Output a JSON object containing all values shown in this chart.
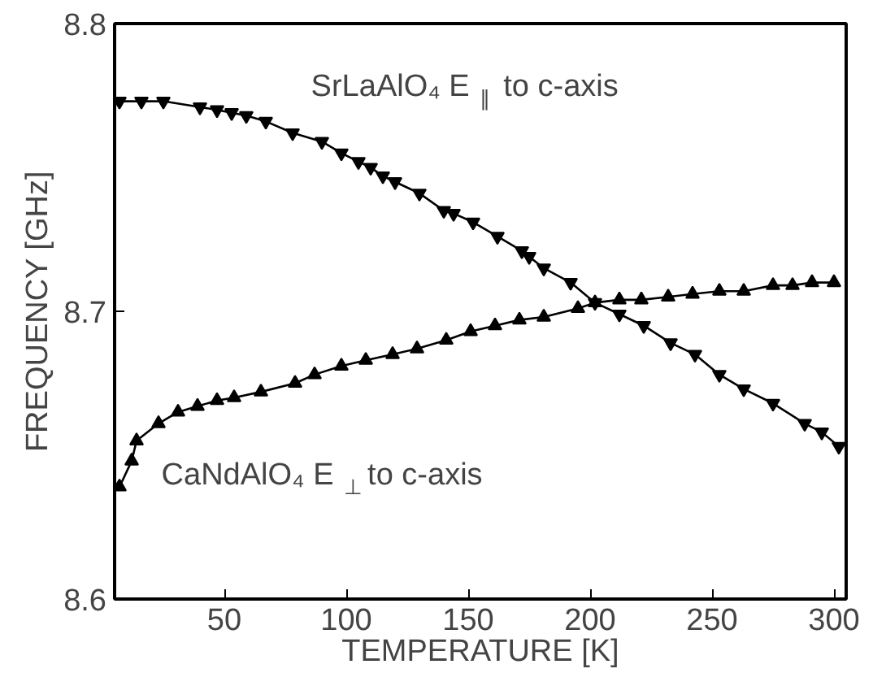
{
  "chart_data": {
    "type": "line",
    "xlabel": "TEMPERATURE [K]",
    "ylabel": "FREQUENCY [GHz]",
    "xlim": [
      5,
      305
    ],
    "ylim": [
      8.6,
      8.8
    ],
    "xticks": [
      50,
      100,
      150,
      200,
      250,
      300
    ],
    "yticks": [
      8.6,
      8.7,
      8.8
    ],
    "grid": false,
    "line_style": "solid",
    "series": [
      {
        "color": "#000000",
        "marker": "triangle_down",
        "x": [
          7,
          16,
          25,
          40,
          47,
          53,
          59,
          67,
          78,
          90,
          98,
          105,
          110,
          115,
          120,
          130,
          140,
          144,
          152,
          162,
          172,
          175,
          181,
          192,
          202,
          212,
          222,
          233,
          243,
          253,
          263,
          275,
          288,
          295,
          302
        ],
        "values": [
          8.773,
          8.773,
          8.773,
          8.771,
          8.77,
          8.769,
          8.768,
          8.766,
          8.762,
          8.759,
          8.755,
          8.752,
          8.75,
          8.747,
          8.745,
          8.741,
          8.735,
          8.734,
          8.731,
          8.726,
          8.721,
          8.719,
          8.715,
          8.71,
          8.703,
          8.699,
          8.695,
          8.689,
          8.685,
          8.678,
          8.673,
          8.668,
          8.661,
          8.658,
          8.653
        ]
      },
      {
        "color": "#000000",
        "marker": "triangle",
        "x": [
          7,
          12,
          14,
          23,
          31,
          39,
          47,
          54,
          65,
          79,
          87,
          98,
          108,
          119,
          129,
          141,
          151,
          161,
          171,
          181,
          195,
          202,
          212,
          221,
          232,
          242,
          253,
          263,
          275,
          283,
          291,
          300
        ],
        "values": [
          8.639,
          8.648,
          8.655,
          8.661,
          8.665,
          8.667,
          8.669,
          8.67,
          8.672,
          8.675,
          8.678,
          8.681,
          8.683,
          8.685,
          8.687,
          8.69,
          8.693,
          8.695,
          8.697,
          8.698,
          8.701,
          8.703,
          8.704,
          8.704,
          8.705,
          8.706,
          8.707,
          8.707,
          8.709,
          8.709,
          8.71,
          8.71
        ]
      }
    ],
    "annotations": [
      "SrLaAlO₄  E$_{∥}$ to c-axis",
      "CaNdAlO₄  E$_{⊥}$ to c-axis"
    ]
  }
}
